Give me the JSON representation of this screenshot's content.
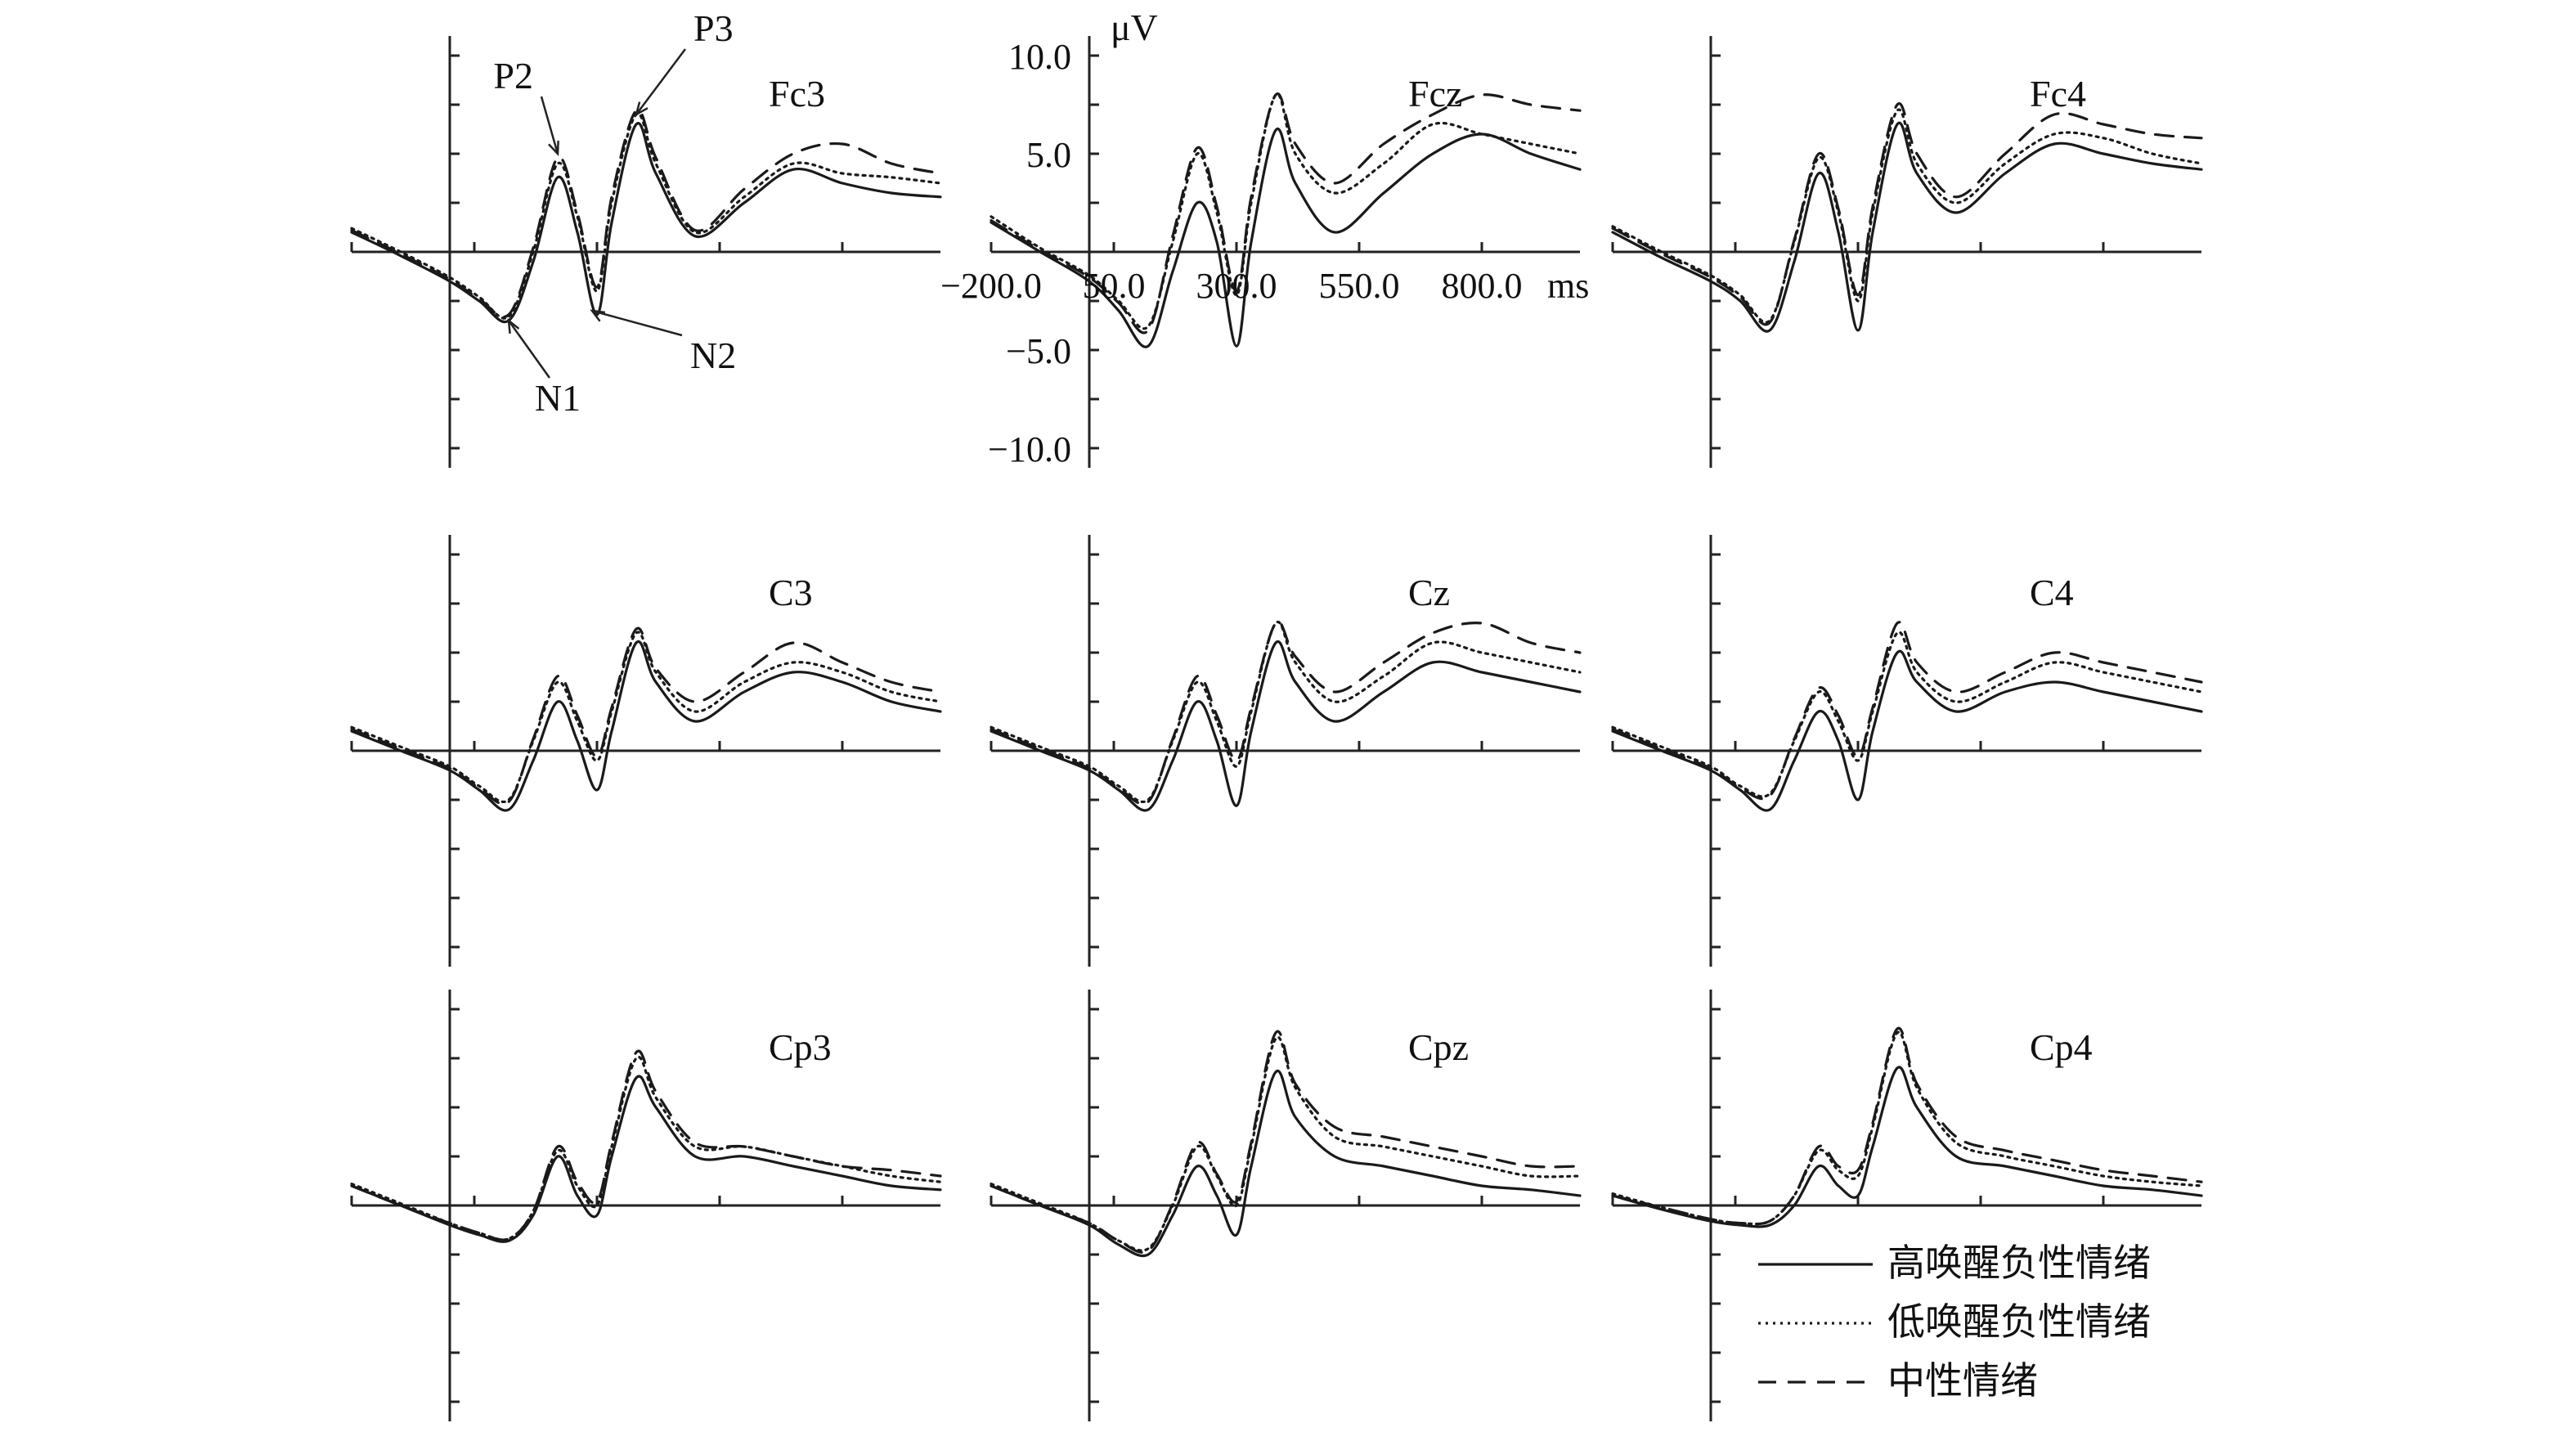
{
  "chart_data": {
    "type": "line",
    "layout": "3x3 small multiples",
    "x_unit": "ms",
    "y_unit": "μV",
    "x_range": [
      -200,
      1000
    ],
    "y_range": [
      -10,
      10
    ],
    "x_ticks": [
      -200,
      50,
      300,
      550,
      800
    ],
    "x_tick_labels": [
      "−200.0",
      "50.0",
      "300.0",
      "550.0",
      "800.0"
    ],
    "y_ticks": [
      -10,
      -5,
      5,
      10
    ],
    "y_tick_labels": [
      "−10.0",
      "−5.0",
      "5.0",
      "10.0"
    ],
    "ylabel": "μV",
    "xlabel": "ms",
    "labeled_panel": "Fcz",
    "legend": {
      "placement": "bottom-right",
      "entries": [
        {
          "label": "高唤醒负性情绪",
          "style": "solid"
        },
        {
          "label": "低唤醒负性情绪",
          "style": "dotted"
        },
        {
          "label": "中性情绪",
          "style": "dashed"
        }
      ]
    },
    "component_annotations": [
      {
        "panel": "Fc3",
        "label": "P2",
        "x": 220,
        "y": 5.0
      },
      {
        "panel": "Fc3",
        "label": "P3",
        "x": 380,
        "y": 7.0
      },
      {
        "panel": "Fc3",
        "label": "N1",
        "x": 120,
        "y": -3.5
      },
      {
        "panel": "Fc3",
        "label": "N2",
        "x": 290,
        "y": -3.0
      }
    ],
    "panels": [
      {
        "name": "Fc3",
        "x": [
          -200,
          -100,
          0,
          60,
          120,
          170,
          220,
          260,
          300,
          330,
          380,
          420,
          500,
          600,
          700,
          800,
          900,
          1000
        ],
        "series": [
          {
            "name": "高唤醒负性情绪",
            "values": [
              1.0,
              -0.2,
              -1.5,
              -2.5,
              -3.5,
              -0.5,
              3.8,
              1.0,
              -3.2,
              1.5,
              6.5,
              4.0,
              0.8,
              2.5,
              4.2,
              3.5,
              3.0,
              2.8
            ]
          },
          {
            "name": "低唤醒负性情绪",
            "values": [
              1.2,
              0.0,
              -1.3,
              -2.3,
              -3.3,
              0.0,
              4.5,
              1.8,
              -2.0,
              2.5,
              7.0,
              4.5,
              1.0,
              2.8,
              4.5,
              4.0,
              3.8,
              3.5
            ]
          },
          {
            "name": "中性情绪",
            "values": [
              1.1,
              -0.1,
              -1.4,
              -2.4,
              -3.2,
              0.2,
              4.8,
              2.0,
              -1.8,
              2.8,
              7.2,
              4.8,
              1.1,
              3.2,
              5.0,
              5.5,
              4.5,
              4.0
            ]
          }
        ]
      },
      {
        "name": "Fcz",
        "x": [
          -200,
          -100,
          0,
          60,
          120,
          170,
          220,
          260,
          300,
          330,
          380,
          420,
          500,
          600,
          700,
          800,
          900,
          1000
        ],
        "series": [
          {
            "name": "高唤醒负性情绪",
            "values": [
              1.5,
              0.0,
              -1.5,
              -3.0,
              -4.8,
              -1.0,
              2.5,
              0.5,
              -4.8,
              0.5,
              6.2,
              3.5,
              1.0,
              3.0,
              5.0,
              6.0,
              5.0,
              4.2
            ]
          },
          {
            "name": "低唤醒负性情绪",
            "values": [
              1.8,
              0.2,
              -1.2,
              -2.5,
              -3.8,
              0.5,
              5.0,
              2.0,
              -2.2,
              2.5,
              8.0,
              5.0,
              3.0,
              4.5,
              6.5,
              6.0,
              5.5,
              5.0
            ]
          },
          {
            "name": "中性情绪",
            "values": [
              1.6,
              0.1,
              -1.3,
              -2.6,
              -4.0,
              0.8,
              5.3,
              2.3,
              -2.0,
              2.8,
              8.0,
              5.5,
              3.5,
              5.5,
              7.0,
              8.0,
              7.5,
              7.2
            ]
          }
        ]
      },
      {
        "name": "Fc4",
        "x": [
          -200,
          -100,
          0,
          60,
          120,
          170,
          220,
          260,
          300,
          330,
          380,
          420,
          500,
          600,
          700,
          800,
          900,
          1000
        ],
        "series": [
          {
            "name": "高唤醒负性情绪",
            "values": [
              1.0,
              -0.3,
              -1.5,
              -2.5,
              -4.0,
              -0.5,
              4.0,
              1.0,
              -4.0,
              1.0,
              6.5,
              4.0,
              2.0,
              4.0,
              5.5,
              5.0,
              4.5,
              4.2
            ]
          },
          {
            "name": "低唤醒负性情绪",
            "values": [
              1.3,
              0.0,
              -1.2,
              -2.2,
              -3.5,
              0.5,
              4.8,
              2.0,
              -2.5,
              2.0,
              7.2,
              4.5,
              2.5,
              4.5,
              6.0,
              5.8,
              5.0,
              4.5
            ]
          },
          {
            "name": "中性情绪",
            "values": [
              1.2,
              -0.1,
              -1.3,
              -2.3,
              -3.6,
              0.6,
              5.0,
              2.2,
              -2.2,
              2.3,
              7.5,
              5.0,
              2.8,
              5.0,
              7.0,
              6.5,
              6.0,
              5.8
            ]
          }
        ]
      },
      {
        "name": "C3",
        "x": [
          -200,
          -100,
          0,
          60,
          120,
          170,
          220,
          260,
          300,
          330,
          380,
          420,
          500,
          600,
          700,
          800,
          900,
          1000
        ],
        "series": [
          {
            "name": "高唤醒负性情绪",
            "values": [
              1.0,
              0.0,
              -1.0,
              -2.0,
              -3.0,
              -0.5,
              2.5,
              0.5,
              -2.0,
              1.0,
              5.5,
              3.5,
              1.5,
              3.0,
              4.0,
              3.5,
              2.5,
              2.0
            ]
          },
          {
            "name": "低唤醒负性情绪",
            "values": [
              1.2,
              0.2,
              -0.8,
              -1.8,
              -2.5,
              0.5,
              3.5,
              1.5,
              -0.5,
              2.0,
              6.0,
              4.0,
              2.0,
              3.5,
              4.5,
              4.0,
              3.0,
              2.5
            ]
          },
          {
            "name": "中性情绪",
            "values": [
              1.1,
              0.1,
              -0.9,
              -1.9,
              -2.6,
              0.6,
              3.8,
              1.8,
              -0.3,
              2.2,
              6.2,
              4.2,
              2.5,
              4.0,
              5.5,
              4.5,
              3.5,
              3.0
            ]
          }
        ]
      },
      {
        "name": "Cz",
        "x": [
          -200,
          -100,
          0,
          60,
          120,
          170,
          220,
          260,
          300,
          330,
          380,
          420,
          500,
          600,
          700,
          800,
          900,
          1000
        ],
        "series": [
          {
            "name": "高唤醒负性情绪",
            "values": [
              1.0,
              0.0,
              -1.0,
              -2.0,
              -3.0,
              -0.5,
              2.5,
              0.5,
              -2.8,
              1.0,
              5.5,
              3.5,
              1.5,
              3.0,
              4.5,
              4.0,
              3.5,
              3.0
            ]
          },
          {
            "name": "低唤醒负性情绪",
            "values": [
              1.2,
              0.2,
              -0.8,
              -1.8,
              -2.5,
              0.5,
              3.5,
              1.5,
              -0.8,
              2.0,
              6.5,
              4.5,
              2.5,
              3.8,
              5.5,
              5.0,
              4.5,
              4.0
            ]
          },
          {
            "name": "中性情绪",
            "values": [
              1.1,
              0.1,
              -0.9,
              -1.9,
              -2.6,
              0.6,
              3.8,
              1.8,
              -0.5,
              2.2,
              6.5,
              4.8,
              3.0,
              4.5,
              6.0,
              6.5,
              5.5,
              5.0
            ]
          }
        ]
      },
      {
        "name": "C4",
        "x": [
          -200,
          -100,
          0,
          60,
          120,
          170,
          220,
          260,
          300,
          330,
          380,
          420,
          500,
          600,
          700,
          800,
          900,
          1000
        ],
        "series": [
          {
            "name": "高唤醒负性情绪",
            "values": [
              1.0,
              0.0,
              -1.0,
              -2.0,
              -3.0,
              -0.5,
              2.0,
              0.5,
              -2.5,
              1.0,
              5.0,
              3.5,
              2.0,
              3.0,
              3.5,
              3.0,
              2.5,
              2.0
            ]
          },
          {
            "name": "低唤醒负性情绪",
            "values": [
              1.2,
              0.2,
              -0.8,
              -1.8,
              -2.2,
              0.5,
              3.0,
              1.5,
              -0.5,
              2.0,
              6.0,
              4.0,
              2.5,
              3.5,
              4.5,
              4.0,
              3.5,
              3.0
            ]
          },
          {
            "name": "中性情绪",
            "values": [
              1.1,
              0.1,
              -0.9,
              -1.9,
              -2.3,
              0.6,
              3.2,
              1.8,
              -0.3,
              2.2,
              6.5,
              4.5,
              3.0,
              4.0,
              5.0,
              4.5,
              4.0,
              3.5
            ]
          }
        ]
      },
      {
        "name": "Cp3",
        "x": [
          -200,
          -100,
          0,
          60,
          120,
          170,
          220,
          260,
          300,
          330,
          380,
          420,
          500,
          600,
          700,
          800,
          900,
          1000
        ],
        "series": [
          {
            "name": "高唤醒负性情绪",
            "values": [
              1.0,
              0.0,
              -1.0,
              -1.5,
              -1.8,
              -0.5,
              2.5,
              0.5,
              -0.5,
              2.5,
              6.5,
              5.0,
              2.5,
              2.5,
              2.0,
              1.5,
              1.0,
              0.8
            ]
          },
          {
            "name": "低唤醒负性情绪",
            "values": [
              1.1,
              0.1,
              -0.9,
              -1.4,
              -1.7,
              -0.3,
              2.8,
              1.0,
              0.0,
              3.0,
              7.5,
              5.5,
              3.0,
              3.0,
              2.5,
              2.0,
              1.5,
              1.2
            ]
          },
          {
            "name": "中性情绪",
            "values": [
              1.0,
              0.0,
              -0.9,
              -1.4,
              -1.7,
              -0.3,
              3.0,
              1.2,
              0.2,
              3.2,
              7.8,
              5.8,
              3.2,
              3.0,
              2.5,
              2.0,
              1.8,
              1.5
            ]
          }
        ]
      },
      {
        "name": "Cpz",
        "x": [
          -200,
          -100,
          0,
          60,
          120,
          170,
          220,
          260,
          300,
          330,
          380,
          420,
          500,
          600,
          700,
          800,
          900,
          1000
        ],
        "series": [
          {
            "name": "高唤醒负性情绪",
            "values": [
              1.0,
              0.0,
              -1.0,
              -2.0,
              -2.5,
              -0.5,
              2.0,
              0.5,
              -1.5,
              2.0,
              6.8,
              4.5,
              2.5,
              2.0,
              1.5,
              1.0,
              0.8,
              0.5
            ]
          },
          {
            "name": "低唤醒负性情绪",
            "values": [
              1.1,
              0.1,
              -0.9,
              -1.8,
              -2.2,
              0.0,
              3.0,
              1.5,
              0.0,
              3.0,
              8.5,
              6.0,
              3.5,
              3.0,
              2.5,
              2.0,
              1.5,
              1.5
            ]
          },
          {
            "name": "中性情绪",
            "values": [
              1.0,
              0.0,
              -0.9,
              -1.8,
              -2.3,
              0.1,
              3.2,
              1.6,
              0.2,
              3.2,
              8.8,
              6.2,
              4.0,
              3.5,
              3.0,
              2.5,
              2.0,
              2.0
            ]
          }
        ]
      },
      {
        "name": "Cp4",
        "x": [
          -200,
          -100,
          0,
          60,
          120,
          170,
          220,
          260,
          300,
          330,
          380,
          420,
          500,
          600,
          700,
          800,
          900,
          1000
        ],
        "series": [
          {
            "name": "高唤醒负性情绪",
            "values": [
              0.5,
              -0.2,
              -0.8,
              -1.0,
              -1.0,
              0.0,
              2.0,
              1.0,
              0.5,
              3.0,
              7.0,
              5.0,
              2.5,
              2.0,
              1.5,
              1.0,
              0.8,
              0.5
            ]
          },
          {
            "name": "低唤醒负性情绪",
            "values": [
              0.6,
              -0.1,
              -0.7,
              -0.9,
              -0.8,
              0.5,
              2.8,
              1.8,
              1.5,
              4.0,
              8.8,
              6.0,
              3.2,
              2.5,
              2.0,
              1.5,
              1.2,
              1.0
            ]
          },
          {
            "name": "中性情绪",
            "values": [
              0.5,
              -0.1,
              -0.7,
              -0.9,
              -0.8,
              0.5,
              3.0,
              2.0,
              1.8,
              4.2,
              9.0,
              6.2,
              3.5,
              2.8,
              2.3,
              1.8,
              1.5,
              1.2
            ]
          }
        ]
      }
    ]
  },
  "styles": {
    "line_color": "#1a1a1a",
    "axis_color": "#222222",
    "background": "#ffffff"
  }
}
